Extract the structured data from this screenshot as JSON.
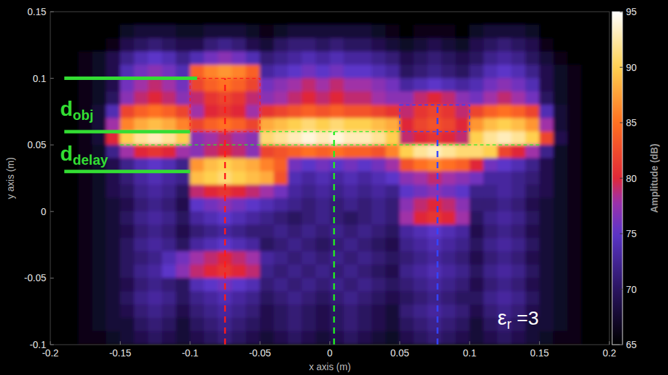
{
  "chart_data": {
    "type": "heatmap",
    "xlabel": "x axis (m)",
    "ylabel": "y axis (m)",
    "xlim": [
      -0.2,
      0.2
    ],
    "ylim": [
      -0.1,
      0.15
    ],
    "xticks": [
      -0.2,
      -0.15,
      -0.1,
      -0.05,
      0,
      0.05,
      0.1,
      0.15,
      0.2
    ],
    "yticks": [
      -0.1,
      -0.05,
      0,
      0.05,
      0.1,
      0.15
    ],
    "x": [
      -0.195,
      -0.185,
      -0.175,
      -0.165,
      -0.155,
      -0.145,
      -0.135,
      -0.125,
      -0.115,
      -0.105,
      -0.095,
      -0.085,
      -0.075,
      -0.065,
      -0.055,
      -0.045,
      -0.035,
      -0.025,
      -0.015,
      -0.005,
      0.005,
      0.015,
      0.025,
      0.035,
      0.045,
      0.055,
      0.065,
      0.075,
      0.085,
      0.095,
      0.105,
      0.115,
      0.125,
      0.135,
      0.145,
      0.155,
      0.165,
      0.175,
      0.185,
      0.195
    ],
    "y": [
      0.145,
      0.135,
      0.125,
      0.115,
      0.105,
      0.095,
      0.085,
      0.075,
      0.065,
      0.055,
      0.045,
      0.035,
      0.025,
      0.015,
      0.005,
      -0.005,
      -0.015,
      -0.025,
      -0.035,
      -0.045,
      -0.055,
      -0.065,
      -0.075,
      -0.085,
      -0.095
    ],
    "cells": [
      [
        65,
        65,
        65,
        65,
        65,
        65,
        65,
        65,
        65,
        65,
        65,
        65,
        65,
        65,
        65,
        65,
        65,
        65,
        65,
        65,
        65,
        65,
        65,
        65,
        65,
        65,
        65,
        65,
        65,
        65,
        65,
        65,
        65,
        65,
        65,
        65,
        65,
        65,
        65,
        65
      ],
      [
        65,
        65,
        65,
        65,
        65,
        67,
        68,
        68,
        68,
        67,
        67,
        68,
        68,
        68,
        67,
        66,
        67,
        68,
        68,
        68,
        68,
        68,
        68,
        67,
        66,
        65,
        66,
        66,
        66,
        65,
        67,
        68,
        68,
        68,
        67,
        65,
        65,
        65,
        65,
        65
      ],
      [
        65,
        65,
        65,
        65,
        66,
        69,
        70,
        71,
        70,
        69,
        69,
        71,
        72,
        71,
        69,
        68,
        70,
        71,
        71,
        70,
        71,
        70,
        70,
        69,
        68,
        67,
        68,
        69,
        68,
        67,
        69,
        70,
        71,
        70,
        69,
        66,
        65,
        65,
        65,
        65
      ],
      [
        65,
        65,
        66,
        67,
        69,
        72,
        74,
        75,
        74,
        72,
        74,
        76,
        77,
        76,
        74,
        71,
        72,
        73,
        74,
        73,
        74,
        73,
        73,
        72,
        71,
        69,
        70,
        71,
        70,
        69,
        70,
        72,
        73,
        72,
        70,
        68,
        66,
        65,
        65,
        65
      ],
      [
        65,
        65,
        66,
        67,
        69,
        74,
        76,
        77,
        76,
        74,
        84,
        86,
        87,
        86,
        84,
        73,
        74,
        75,
        76,
        75,
        76,
        75,
        75,
        74,
        73,
        70,
        71,
        72,
        71,
        70,
        72,
        74,
        75,
        74,
        72,
        69,
        67,
        66,
        65,
        65
      ],
      [
        65,
        65,
        66,
        67,
        69,
        76,
        78,
        79,
        78,
        76,
        82,
        84,
        85,
        84,
        82,
        76,
        77,
        78,
        79,
        78,
        79,
        78,
        78,
        77,
        76,
        73,
        74,
        75,
        74,
        73,
        74,
        76,
        77,
        76,
        74,
        69,
        67,
        66,
        65,
        65
      ],
      [
        65,
        65,
        66,
        67,
        70,
        77,
        79,
        80,
        79,
        77,
        79,
        81,
        82,
        81,
        79,
        77,
        78,
        79,
        80,
        79,
        80,
        79,
        79,
        78,
        77,
        77,
        79,
        80,
        79,
        77,
        76,
        78,
        79,
        78,
        76,
        70,
        67,
        66,
        65,
        65
      ],
      [
        65,
        65,
        66,
        68,
        74,
        82,
        84,
        85,
        84,
        82,
        78,
        80,
        81,
        80,
        78,
        81,
        82,
        83,
        84,
        83,
        84,
        83,
        83,
        82,
        81,
        79,
        81,
        82,
        81,
        79,
        82,
        84,
        85,
        84,
        82,
        74,
        68,
        66,
        65,
        65
      ],
      [
        65,
        65,
        66,
        68,
        78,
        86,
        88,
        89,
        88,
        86,
        82,
        84,
        85,
        84,
        82,
        88,
        89,
        90,
        91,
        90,
        91,
        90,
        90,
        89,
        88,
        80,
        82,
        83,
        82,
        80,
        87,
        89,
        90,
        89,
        87,
        78,
        68,
        66,
        65,
        65
      ],
      [
        65,
        65,
        66,
        68,
        80,
        90,
        92,
        93,
        92,
        90,
        77,
        78,
        79,
        78,
        77,
        91,
        92,
        93,
        94,
        93,
        94,
        93,
        93,
        92,
        90,
        79,
        80,
        81,
        80,
        79,
        90,
        92,
        93,
        92,
        90,
        82,
        69,
        66,
        65,
        65
      ],
      [
        65,
        65,
        66,
        67,
        72,
        78,
        80,
        81,
        80,
        78,
        77,
        79,
        80,
        79,
        77,
        82,
        83,
        84,
        85,
        84,
        85,
        84,
        84,
        83,
        86,
        90,
        92,
        93,
        92,
        91,
        91,
        90,
        82,
        80,
        78,
        72,
        67,
        66,
        65,
        65
      ],
      [
        65,
        65,
        66,
        67,
        69,
        72,
        74,
        75,
        74,
        72,
        87,
        89,
        90,
        89,
        88,
        86,
        84,
        76,
        75,
        76,
        75,
        76,
        75,
        76,
        78,
        83,
        85,
        86,
        85,
        84,
        80,
        76,
        75,
        74,
        72,
        69,
        67,
        66,
        65,
        65
      ],
      [
        65,
        65,
        66,
        67,
        69,
        71,
        73,
        74,
        73,
        72,
        89,
        90,
        91,
        90,
        89,
        88,
        83,
        74,
        73,
        74,
        73,
        74,
        73,
        74,
        75,
        77,
        78,
        79,
        78,
        77,
        76,
        73,
        73,
        72,
        71,
        69,
        67,
        66,
        65,
        65
      ],
      [
        65,
        65,
        66,
        67,
        69,
        70,
        72,
        73,
        72,
        70,
        79,
        80,
        81,
        80,
        79,
        78,
        76,
        73,
        72,
        73,
        72,
        73,
        72,
        73,
        72,
        75,
        76,
        77,
        76,
        75,
        72,
        72,
        73,
        72,
        70,
        69,
        67,
        66,
        65,
        65
      ],
      [
        65,
        65,
        66,
        67,
        68,
        69,
        71,
        72,
        71,
        69,
        75,
        76,
        77,
        76,
        75,
        74,
        73,
        72,
        71,
        72,
        71,
        72,
        71,
        72,
        71,
        77,
        79,
        80,
        79,
        77,
        71,
        71,
        72,
        71,
        69,
        68,
        67,
        66,
        65,
        65
      ],
      [
        65,
        65,
        66,
        67,
        68,
        70,
        72,
        73,
        72,
        70,
        73,
        74,
        75,
        74,
        73,
        72,
        71,
        70,
        71,
        72,
        71,
        70,
        71,
        72,
        71,
        78,
        80,
        81,
        80,
        78,
        70,
        72,
        73,
        72,
        70,
        68,
        67,
        66,
        65,
        65
      ],
      [
        65,
        65,
        66,
        67,
        68,
        69,
        71,
        72,
        71,
        69,
        71,
        72,
        73,
        72,
        71,
        71,
        72,
        71,
        72,
        71,
        72,
        71,
        72,
        71,
        70,
        73,
        74,
        75,
        74,
        73,
        69,
        71,
        72,
        71,
        69,
        68,
        67,
        66,
        65,
        65
      ],
      [
        65,
        65,
        66,
        67,
        68,
        70,
        72,
        73,
        72,
        70,
        73,
        74,
        75,
        74,
        73,
        70,
        71,
        72,
        71,
        70,
        71,
        72,
        71,
        70,
        69,
        72,
        73,
        74,
        73,
        72,
        70,
        72,
        73,
        72,
        70,
        68,
        67,
        66,
        65,
        65
      ],
      [
        65,
        65,
        66,
        67,
        68,
        70,
        71,
        72,
        74,
        76,
        78,
        79,
        80,
        79,
        78,
        73,
        72,
        71,
        72,
        71,
        72,
        71,
        72,
        71,
        70,
        71,
        72,
        73,
        72,
        71,
        69,
        71,
        72,
        71,
        69,
        68,
        67,
        66,
        65,
        65
      ],
      [
        65,
        65,
        66,
        67,
        68,
        70,
        72,
        73,
        75,
        77,
        79,
        80,
        81,
        80,
        79,
        72,
        71,
        72,
        71,
        72,
        71,
        72,
        71,
        70,
        69,
        72,
        73,
        74,
        73,
        72,
        70,
        72,
        73,
        72,
        70,
        68,
        67,
        66,
        65,
        65
      ],
      [
        65,
        65,
        66,
        67,
        68,
        69,
        71,
        72,
        71,
        70,
        74,
        75,
        76,
        75,
        74,
        71,
        72,
        71,
        72,
        71,
        72,
        71,
        72,
        71,
        70,
        71,
        72,
        73,
        72,
        71,
        69,
        71,
        72,
        71,
        69,
        68,
        67,
        66,
        65,
        65
      ],
      [
        65,
        65,
        66,
        67,
        68,
        70,
        72,
        73,
        72,
        70,
        72,
        73,
        74,
        73,
        72,
        70,
        71,
        72,
        71,
        70,
        71,
        72,
        71,
        70,
        69,
        70,
        71,
        72,
        71,
        70,
        70,
        72,
        73,
        72,
        70,
        68,
        67,
        66,
        65,
        65
      ],
      [
        65,
        65,
        66,
        67,
        68,
        69,
        71,
        72,
        71,
        69,
        71,
        72,
        73,
        72,
        71,
        69,
        70,
        71,
        70,
        69,
        70,
        71,
        70,
        69,
        68,
        71,
        72,
        73,
        72,
        71,
        69,
        71,
        72,
        71,
        69,
        68,
        67,
        66,
        65,
        65
      ],
      [
        65,
        65,
        66,
        67,
        68,
        68,
        70,
        71,
        70,
        68,
        70,
        71,
        72,
        71,
        70,
        69,
        70,
        71,
        70,
        69,
        70,
        71,
        70,
        69,
        68,
        70,
        71,
        72,
        71,
        70,
        68,
        70,
        71,
        70,
        68,
        68,
        67,
        66,
        65,
        65
      ],
      [
        65,
        65,
        66,
        66,
        67,
        68,
        69,
        70,
        69,
        68,
        69,
        70,
        71,
        70,
        69,
        68,
        69,
        70,
        69,
        68,
        69,
        70,
        69,
        68,
        67,
        69,
        70,
        71,
        70,
        69,
        68,
        69,
        70,
        69,
        68,
        67,
        66,
        66,
        65,
        65
      ]
    ],
    "colorbar": {
      "range": [
        65,
        95
      ],
      "ticks": [
        65,
        70,
        75,
        80,
        85,
        90,
        95
      ],
      "label": "Amplitude (dB)"
    },
    "vlines": [
      {
        "x": -0.075,
        "y": [
          -0.1,
          0.1
        ],
        "color": "#ff1a1a"
      },
      {
        "x": 0.003,
        "y": [
          -0.1,
          0.06
        ],
        "color": "#22ee22"
      },
      {
        "x": 0.077,
        "y": [
          -0.1,
          0.08
        ],
        "color": "#3344ff"
      }
    ],
    "hlines": [
      {
        "y": 0.06,
        "x": [
          -0.05,
          0.05
        ],
        "color": "#22ee22"
      },
      {
        "y": 0.05,
        "x": [
          -0.15,
          0.15
        ],
        "color": "#22ee22"
      }
    ],
    "boxes": [
      {
        "x": [
          -0.1,
          -0.05
        ],
        "y": [
          0.06,
          0.1
        ],
        "color": "#ff1a1a"
      },
      {
        "x": [
          0.05,
          0.1
        ],
        "y": [
          0.06,
          0.08
        ],
        "color": "#3344ff"
      }
    ],
    "guides": [
      {
        "y": 0.1,
        "x": [
          -0.19,
          -0.095
        ],
        "color": "#33dd33"
      },
      {
        "y": 0.06,
        "x": [
          -0.19,
          -0.1
        ],
        "color": "#33dd33"
      },
      {
        "y": 0.03,
        "x": [
          -0.19,
          -0.1
        ],
        "color": "#33dd33"
      }
    ],
    "labels": [
      {
        "text": "d",
        "subscript": "obj",
        "x": -0.193,
        "y": 0.072,
        "color": "#33dd33"
      },
      {
        "text": "d",
        "subscript": "delay",
        "x": -0.193,
        "y": 0.038,
        "color": "#33dd33"
      },
      {
        "text": "ε",
        "subscript": "r",
        "suffix": " =3",
        "x": 0.12,
        "y": -0.085,
        "color": "#ffffff"
      }
    ]
  }
}
